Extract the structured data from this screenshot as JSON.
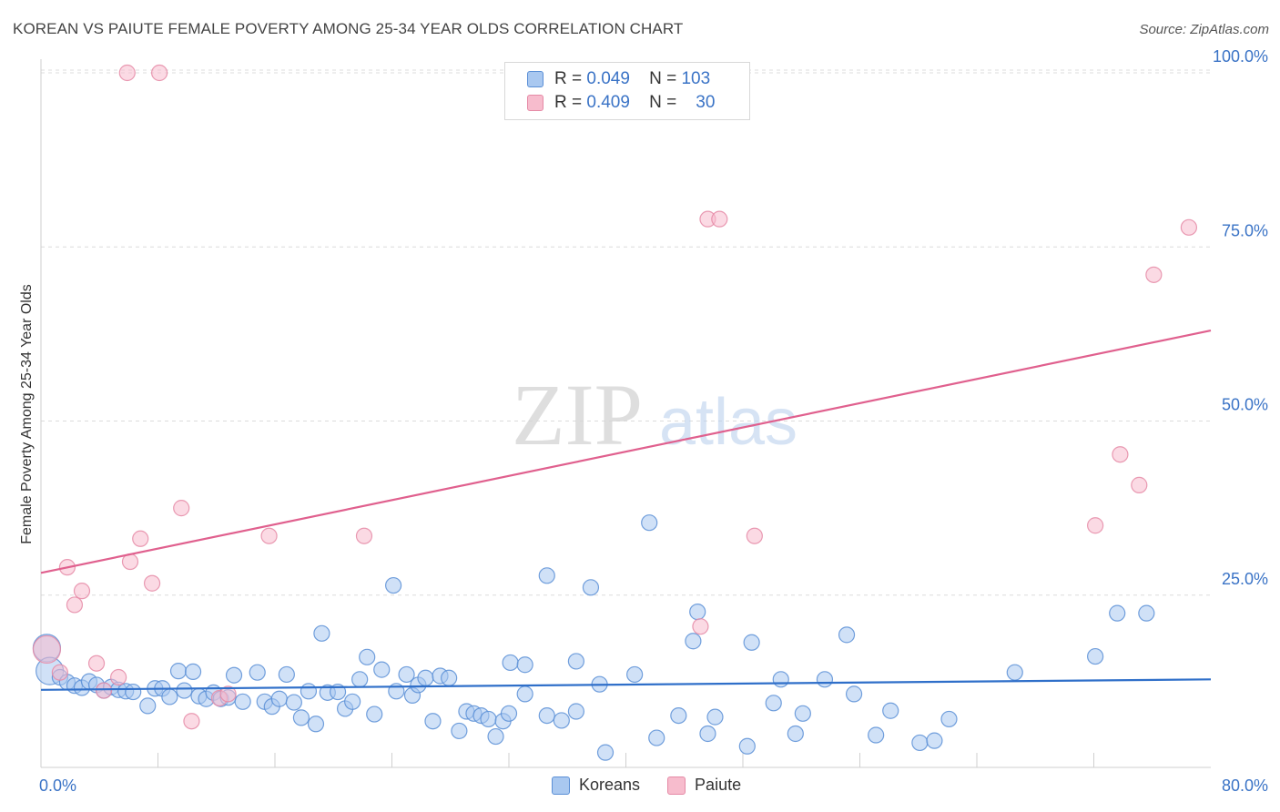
{
  "title": "KOREAN VS PAIUTE FEMALE POVERTY AMONG 25-34 YEAR OLDS CORRELATION CHART",
  "source": "Source: ZipAtlas.com",
  "watermark": {
    "zip": "ZIP",
    "atlas": "atlas"
  },
  "legend_top": {
    "koreans": {
      "r_label": "R =",
      "r_value": "0.049",
      "n_label": "N =",
      "n_value": "103"
    },
    "paiute": {
      "r_label": "R =",
      "r_value": "0.409",
      "n_label": "N =",
      "n_value": "30"
    }
  },
  "legend_bottom": {
    "koreans": "Koreans",
    "paiute": "Paiute"
  },
  "colors": {
    "koreans_fill": "#a9c8f0",
    "koreans_stroke": "#5b8fd6",
    "koreans_line": "#2f6fc9",
    "paiute_fill": "#f7bccd",
    "paiute_stroke": "#e58aa6",
    "paiute_line": "#e0608e",
    "tick_label": "#3a73c6",
    "grid": "#dcdcdc"
  },
  "chart_data": {
    "type": "scatter",
    "title": "KOREAN VS PAIUTE FEMALE POVERTY AMONG 25-34 YEAR OLDS CORRELATION CHART",
    "xlabel": "",
    "ylabel": "Female Poverty Among 25-34 Year Olds",
    "xlim": [
      0,
      80
    ],
    "ylim": [
      0,
      103
    ],
    "x_tick_labels": [
      "0.0%",
      "80.0%"
    ],
    "y_ticks": [
      25,
      50,
      75,
      100
    ],
    "y_tick_labels": [
      "25.0%",
      "50.0%",
      "75.0%",
      "100.0%"
    ],
    "grid": true,
    "legend_position": "bottom",
    "series": [
      {
        "name": "Koreans",
        "R": 0.049,
        "N": 103,
        "trend": {
          "x": [
            0,
            80
          ],
          "y": [
            11.4,
            12.9
          ]
        },
        "points": [
          {
            "x": 0.4,
            "y": 17.4,
            "big": true
          },
          {
            "x": 0.6,
            "y": 14.1,
            "big": true
          },
          {
            "x": 1.3,
            "y": 13.2
          },
          {
            "x": 1.8,
            "y": 12.5
          },
          {
            "x": 2.3,
            "y": 12.0
          },
          {
            "x": 2.8,
            "y": 11.7
          },
          {
            "x": 3.3,
            "y": 12.6
          },
          {
            "x": 3.8,
            "y": 12.1
          },
          {
            "x": 4.3,
            "y": 11.3
          },
          {
            "x": 4.8,
            "y": 11.8
          },
          {
            "x": 5.3,
            "y": 11.4
          },
          {
            "x": 5.8,
            "y": 11.2
          },
          {
            "x": 6.3,
            "y": 11.1
          },
          {
            "x": 7.3,
            "y": 9.1
          },
          {
            "x": 7.8,
            "y": 11.6
          },
          {
            "x": 8.3,
            "y": 11.6
          },
          {
            "x": 8.8,
            "y": 10.4
          },
          {
            "x": 9.4,
            "y": 14.1
          },
          {
            "x": 9.8,
            "y": 11.3
          },
          {
            "x": 10.4,
            "y": 14.0
          },
          {
            "x": 10.8,
            "y": 10.5
          },
          {
            "x": 11.3,
            "y": 10.1
          },
          {
            "x": 11.8,
            "y": 11.0
          },
          {
            "x": 12.3,
            "y": 10.1
          },
          {
            "x": 12.8,
            "y": 10.3
          },
          {
            "x": 13.2,
            "y": 13.5
          },
          {
            "x": 13.8,
            "y": 9.7
          },
          {
            "x": 14.8,
            "y": 13.9
          },
          {
            "x": 15.3,
            "y": 9.7
          },
          {
            "x": 15.8,
            "y": 9.0
          },
          {
            "x": 16.3,
            "y": 10.1
          },
          {
            "x": 16.8,
            "y": 13.6
          },
          {
            "x": 17.3,
            "y": 9.6
          },
          {
            "x": 17.8,
            "y": 7.4
          },
          {
            "x": 18.3,
            "y": 11.2
          },
          {
            "x": 18.8,
            "y": 6.5
          },
          {
            "x": 19.2,
            "y": 19.5
          },
          {
            "x": 19.6,
            "y": 11.0
          },
          {
            "x": 20.3,
            "y": 11.1
          },
          {
            "x": 20.8,
            "y": 8.7
          },
          {
            "x": 21.3,
            "y": 9.7
          },
          {
            "x": 21.8,
            "y": 12.9
          },
          {
            "x": 22.3,
            "y": 16.1
          },
          {
            "x": 22.8,
            "y": 7.9
          },
          {
            "x": 23.3,
            "y": 14.3
          },
          {
            "x": 24.1,
            "y": 26.4
          },
          {
            "x": 24.3,
            "y": 11.2
          },
          {
            "x": 25.0,
            "y": 13.6
          },
          {
            "x": 25.4,
            "y": 10.6
          },
          {
            "x": 25.8,
            "y": 12.1
          },
          {
            "x": 26.3,
            "y": 13.1
          },
          {
            "x": 26.8,
            "y": 6.9
          },
          {
            "x": 27.3,
            "y": 13.4
          },
          {
            "x": 27.9,
            "y": 13.1
          },
          {
            "x": 28.6,
            "y": 5.5
          },
          {
            "x": 29.1,
            "y": 8.3
          },
          {
            "x": 29.6,
            "y": 8.0
          },
          {
            "x": 30.1,
            "y": 7.7
          },
          {
            "x": 30.6,
            "y": 7.2
          },
          {
            "x": 31.1,
            "y": 4.7
          },
          {
            "x": 31.6,
            "y": 6.9
          },
          {
            "x": 32.0,
            "y": 8.0
          },
          {
            "x": 32.1,
            "y": 15.3
          },
          {
            "x": 33.1,
            "y": 15.0
          },
          {
            "x": 33.1,
            "y": 10.8
          },
          {
            "x": 34.6,
            "y": 27.8
          },
          {
            "x": 34.6,
            "y": 7.7
          },
          {
            "x": 35.6,
            "y": 7.0
          },
          {
            "x": 36.6,
            "y": 15.5
          },
          {
            "x": 36.6,
            "y": 8.3
          },
          {
            "x": 37.6,
            "y": 26.1
          },
          {
            "x": 38.2,
            "y": 12.2
          },
          {
            "x": 38.6,
            "y": 2.4
          },
          {
            "x": 40.6,
            "y": 13.6
          },
          {
            "x": 41.6,
            "y": 35.4
          },
          {
            "x": 42.1,
            "y": 4.5
          },
          {
            "x": 43.6,
            "y": 7.7
          },
          {
            "x": 44.6,
            "y": 18.4
          },
          {
            "x": 44.9,
            "y": 22.6
          },
          {
            "x": 45.6,
            "y": 5.1
          },
          {
            "x": 46.1,
            "y": 7.5
          },
          {
            "x": 48.6,
            "y": 18.2
          },
          {
            "x": 48.3,
            "y": 3.3
          },
          {
            "x": 50.1,
            "y": 9.5
          },
          {
            "x": 50.6,
            "y": 12.9
          },
          {
            "x": 51.6,
            "y": 5.1
          },
          {
            "x": 52.1,
            "y": 8.0
          },
          {
            "x": 53.6,
            "y": 12.9
          },
          {
            "x": 55.1,
            "y": 19.3
          },
          {
            "x": 55.6,
            "y": 10.8
          },
          {
            "x": 57.1,
            "y": 4.9
          },
          {
            "x": 58.1,
            "y": 8.4
          },
          {
            "x": 60.1,
            "y": 3.8
          },
          {
            "x": 61.1,
            "y": 4.1
          },
          {
            "x": 62.1,
            "y": 7.2
          },
          {
            "x": 66.6,
            "y": 13.9
          },
          {
            "x": 72.1,
            "y": 16.2
          },
          {
            "x": 73.6,
            "y": 22.4
          },
          {
            "x": 75.6,
            "y": 22.4
          }
        ]
      },
      {
        "name": "Paiute",
        "R": 0.409,
        "N": 30,
        "trend": {
          "x": [
            0,
            80
          ],
          "y": [
            28.2,
            63.0
          ]
        },
        "points": [
          {
            "x": 0.4,
            "y": 17.2,
            "big": true
          },
          {
            "x": 1.3,
            "y": 13.9
          },
          {
            "x": 1.8,
            "y": 29.0
          },
          {
            "x": 2.3,
            "y": 23.6
          },
          {
            "x": 2.8,
            "y": 25.6
          },
          {
            "x": 3.8,
            "y": 15.2
          },
          {
            "x": 4.3,
            "y": 11.3
          },
          {
            "x": 5.3,
            "y": 13.2
          },
          {
            "x": 5.9,
            "y": 100.0
          },
          {
            "x": 6.1,
            "y": 29.8
          },
          {
            "x": 6.8,
            "y": 33.1
          },
          {
            "x": 7.6,
            "y": 26.7
          },
          {
            "x": 8.1,
            "y": 100.0
          },
          {
            "x": 9.6,
            "y": 37.5
          },
          {
            "x": 10.3,
            "y": 6.9
          },
          {
            "x": 12.2,
            "y": 10.2
          },
          {
            "x": 12.8,
            "y": 10.8
          },
          {
            "x": 15.6,
            "y": 33.5
          },
          {
            "x": 22.1,
            "y": 33.5
          },
          {
            "x": 45.1,
            "y": 20.5
          },
          {
            "x": 45.6,
            "y": 79.0
          },
          {
            "x": 46.4,
            "y": 79.0
          },
          {
            "x": 48.8,
            "y": 33.5
          },
          {
            "x": 72.1,
            "y": 35.0
          },
          {
            "x": 73.8,
            "y": 45.2
          },
          {
            "x": 75.1,
            "y": 40.8
          },
          {
            "x": 76.1,
            "y": 71.0
          },
          {
            "x": 78.5,
            "y": 77.8
          }
        ]
      }
    ]
  }
}
